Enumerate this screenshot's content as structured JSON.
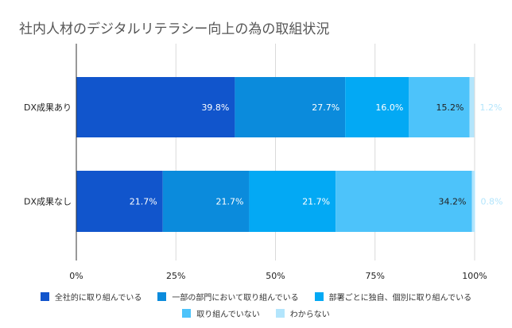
{
  "chart_data": {
    "type": "bar",
    "orientation": "horizontal",
    "stacked": true,
    "title": "社内人材のデジタルリテラシー向上の為の取組状況",
    "categories": [
      "DX成果あり",
      "DX成果なし"
    ],
    "xlim": [
      0,
      100
    ],
    "x_ticks": [
      "0%",
      "25%",
      "50%",
      "75%",
      "100%"
    ],
    "x_tick_values": [
      0,
      25,
      50,
      75,
      100
    ],
    "grid": true,
    "legend_position": "bottom",
    "series": [
      {
        "name": "全社的に取り組んでいる",
        "color": "#1155cc",
        "values": [
          39.8,
          21.7
        ],
        "labels": [
          "39.8%",
          "21.7%"
        ],
        "label_color": "#ffffff"
      },
      {
        "name": "一部の部門において取り組んでいる",
        "color": "#0b8bdc",
        "values": [
          27.7,
          21.7
        ],
        "labels": [
          "27.7%",
          "21.7%"
        ],
        "label_color": "#ffffff"
      },
      {
        "name": "部署ごとに独自、個別に取り組んでいる",
        "color": "#03a9f4",
        "values": [
          16.0,
          21.7
        ],
        "labels": [
          "16.0%",
          "21.7%"
        ],
        "label_color": "#ffffff"
      },
      {
        "name": "取り組んでいない",
        "color": "#4dc3fa",
        "values": [
          15.2,
          34.2
        ],
        "labels": [
          "15.2%",
          "34.2%"
        ],
        "label_color": "#222222"
      },
      {
        "name": "わからない",
        "color": "#b3e5fc",
        "values": [
          1.2,
          0.8
        ],
        "labels": [
          "1.2%",
          "0.8%"
        ],
        "label_color": "#b3e5fc"
      }
    ]
  }
}
